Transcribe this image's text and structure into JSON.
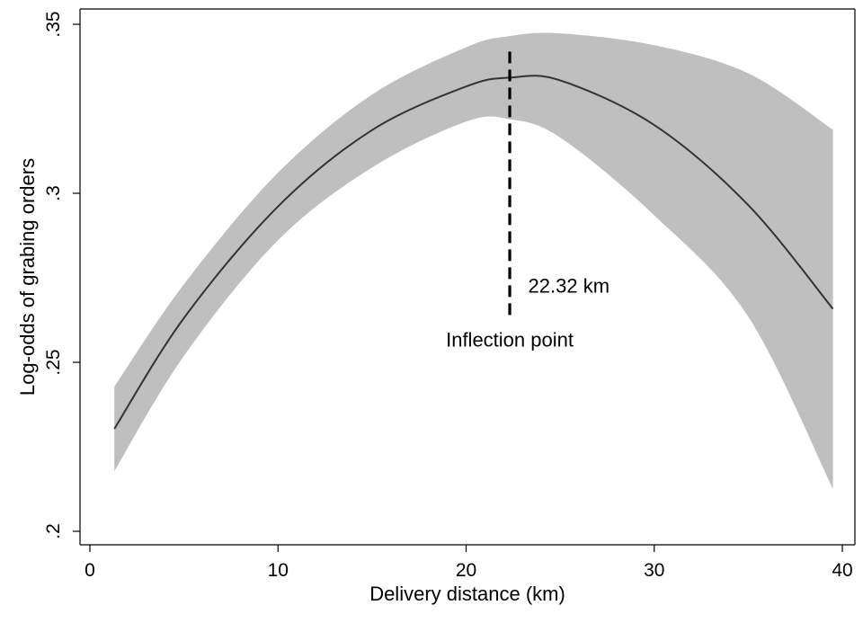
{
  "chart_data": {
    "type": "line",
    "title": "",
    "xlabel": "Delivery distance (km)",
    "ylabel": "Log-odds of grabing orders",
    "xlim": [
      0,
      40
    ],
    "ylim": [
      0.2,
      0.35
    ],
    "x_ticks": [
      {
        "value": 0,
        "label": "0"
      },
      {
        "value": 10,
        "label": "10"
      },
      {
        "value": 20,
        "label": "20"
      },
      {
        "value": 30,
        "label": "30"
      },
      {
        "value": 40,
        "label": "40"
      }
    ],
    "y_ticks": [
      {
        "value": 0.2,
        "label": ".2"
      },
      {
        "value": 0.25,
        "label": ".25"
      },
      {
        "value": 0.3,
        "label": ".3"
      },
      {
        "value": 0.35,
        "label": ".35"
      }
    ],
    "grid": false,
    "series": [
      {
        "x": [
          1.3,
          5,
          10,
          15,
          20,
          22.32,
          25,
          30,
          35,
          39.5
        ],
        "values": [
          0.2303,
          0.2631,
          0.2961,
          0.3187,
          0.3316,
          0.3342,
          0.3334,
          0.3202,
          0.2965,
          0.2658
        ],
        "color": "#333333"
      }
    ],
    "confidence_band": {
      "x": [
        1.3,
        5,
        10,
        15,
        20,
        22.32,
        25,
        30,
        35,
        39.5
      ],
      "upper": [
        0.2428,
        0.2731,
        0.3061,
        0.3292,
        0.3432,
        0.3465,
        0.3473,
        0.3438,
        0.3355,
        0.3188
      ],
      "lower": [
        0.2178,
        0.2519,
        0.2861,
        0.3076,
        0.3212,
        0.3219,
        0.3165,
        0.2935,
        0.2635,
        0.2125
      ],
      "color": "#bfbfbf"
    },
    "annotations": [
      {
        "type": "vline",
        "x": 22.32,
        "y_from": 0.264,
        "y_to": 0.3425,
        "style": "dashed"
      },
      {
        "text": "22.32 km",
        "x": 23.3,
        "y": 0.2725
      },
      {
        "text": "Inflection point",
        "x": 22.32,
        "y": 0.2565
      }
    ]
  }
}
